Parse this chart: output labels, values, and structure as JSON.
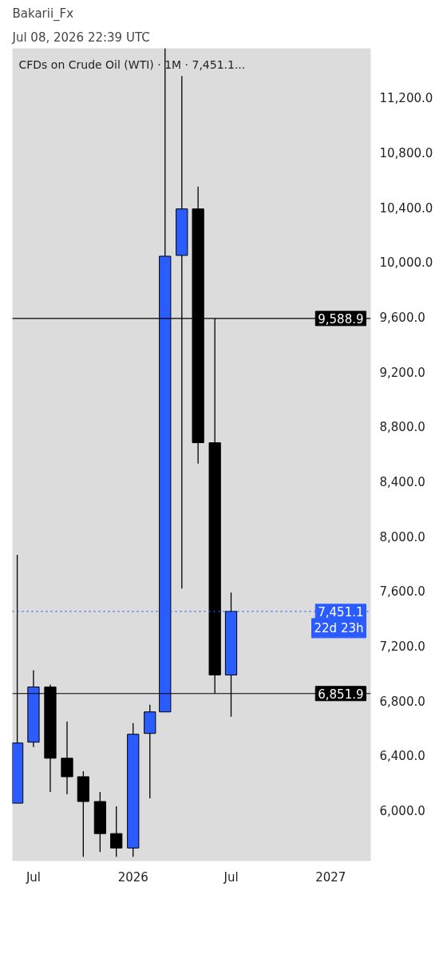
{
  "chart_data": {
    "type": "candlestick",
    "title": "CFDs on Crude Oil (WTI) · 1M · 7,451.1...",
    "annotations": [
      "Bakarii_Fx",
      "Jul 08, 2026 22:39 UTC",
      {
        "text": "22d 23h",
        "y": 7451.1
      }
    ],
    "x": [
      "2025-06",
      "2025-07",
      "2025-08",
      "2025-09",
      "2025-10",
      "2025-11",
      "2025-12",
      "2026-01",
      "2026-02",
      "2026-03",
      "2026-04",
      "2026-05",
      "2026-06",
      "2026-07"
    ],
    "ohlc": [
      [
        6052,
        7864,
        6052,
        6491
      ],
      [
        6497,
        7022,
        6461,
        6900
      ],
      [
        6900,
        6917,
        6134,
        6380
      ],
      [
        6380,
        6648,
        6117,
        6245
      ],
      [
        6245,
        6286,
        5661,
        6064
      ],
      [
        6064,
        6134,
        5696,
        5830
      ],
      [
        5830,
        6029,
        5661,
        5725
      ],
      [
        5725,
        6637,
        5661,
        6555
      ],
      [
        6561,
        6771,
        6087,
        6718
      ],
      [
        6718,
        11560,
        6718,
        10043
      ],
      [
        10049,
        11358,
        7618,
        10388
      ],
      [
        10388,
        10551,
        8530,
        8682
      ],
      [
        8682,
        9588.9,
        6851.9,
        6987
      ],
      [
        6987,
        7589,
        6683,
        7451.1
      ]
    ],
    "colors": [
      "#2a5cff",
      "#2a5cff",
      "#000000",
      "#000000",
      "#000000",
      "#000000",
      "#000000",
      "#2a5cff",
      "#2a5cff",
      "#2a5cff",
      "#2a5cff",
      "#000000",
      "#000000",
      "#2a5cff"
    ],
    "xlim": [
      "2025-05-23",
      "2027-03-16"
    ],
    "xticks": [
      {
        "value": "2025-07",
        "label": "Jul"
      },
      {
        "value": "2026-01",
        "label": "2026"
      },
      {
        "value": "2026-07",
        "label": "Jul"
      },
      {
        "value": "2027-01",
        "label": "2027"
      }
    ],
    "ylim": [
      5630,
      11560
    ],
    "yticks": [
      {
        "value": 6000,
        "label": "6,000.0"
      },
      {
        "value": 6400,
        "label": "6,400.0"
      },
      {
        "value": 6800,
        "label": "6,800.0"
      },
      {
        "value": 7200,
        "label": "7,200.0"
      },
      {
        "value": 7600,
        "label": "7,600.0"
      },
      {
        "value": 8000,
        "label": "8,000.0"
      },
      {
        "value": 8400,
        "label": "8,400.0"
      },
      {
        "value": 8800,
        "label": "8,800.0"
      },
      {
        "value": 9200,
        "label": "9,200.0"
      },
      {
        "value": 9600,
        "label": "9,600.0"
      },
      {
        "value": 10000,
        "label": "10,000.0"
      },
      {
        "value": 10400,
        "label": "10,400.0"
      },
      {
        "value": 10800,
        "label": "10,800.0"
      },
      {
        "value": 11200,
        "label": "11,200.0"
      }
    ],
    "ref_lines": [
      {
        "axis": "y",
        "value": 9588.9,
        "label": "9,588.9",
        "color": "#000000",
        "line_style": "solid"
      },
      {
        "axis": "y",
        "value": 6851.9,
        "label": "6,851.9",
        "color": "#000000",
        "line_style": "solid"
      },
      {
        "axis": "y",
        "value": 7451.1,
        "label": "7,451.1",
        "color": "#2a5cff",
        "line_style": "dotted"
      }
    ]
  }
}
